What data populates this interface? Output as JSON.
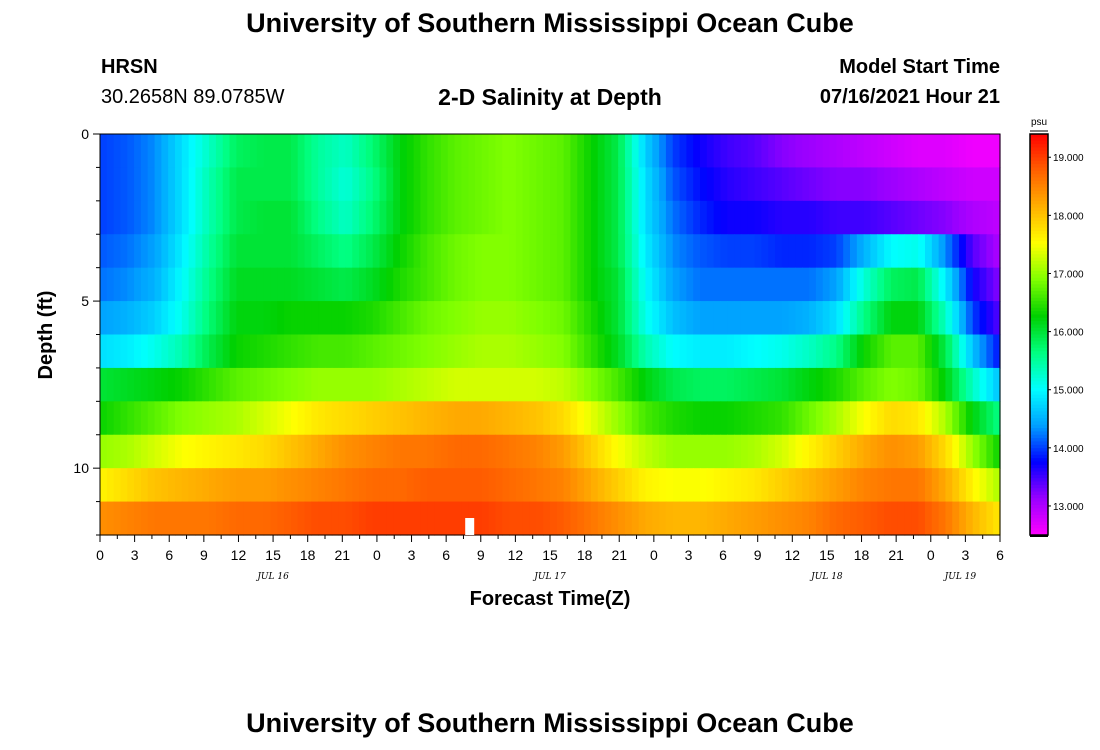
{
  "header": {
    "title": "University of Southern Mississippi Ocean Cube",
    "station": "HRSN",
    "coordinates": "30.2658N  89.0785W",
    "chart_title": "2-D Salinity at Depth",
    "model_start_label": "Model Start Time",
    "model_start_value": "07/16/2021 Hour 21"
  },
  "footer": {
    "title": "University of Southern Mississippi Ocean Cube"
  },
  "chart_data": {
    "type": "heatmap",
    "title": "2-D Salinity at Depth",
    "xlabel": "Forecast Time(Z)",
    "ylabel": "Depth (ft)",
    "x_ticks": [
      "0",
      "3",
      "6",
      "9",
      "12",
      "15",
      "18",
      "21",
      "0",
      "3",
      "6",
      "9",
      "12",
      "15",
      "18",
      "21",
      "0",
      "3",
      "6",
      "9",
      "12",
      "15",
      "18",
      "21",
      "0",
      "3",
      "6"
    ],
    "x_dates": [
      "JUL 16",
      "JUL 17",
      "JUL 18",
      "JUL 19"
    ],
    "x_hours_range": [
      0,
      78
    ],
    "y_ticks": [
      "0",
      "5",
      "10"
    ],
    "y_range_ft": [
      0,
      12
    ],
    "depth_levels": 12,
    "colorbar": {
      "unit": "psu",
      "min": 12.5,
      "max": 19.4,
      "ticks": [
        "13.000",
        "14.000",
        "15.000",
        "16.000",
        "17.000",
        "18.000",
        "19.000"
      ],
      "colors": [
        "#ff00ff",
        "#9900ff",
        "#0000ff",
        "#00a0ff",
        "#00ffff",
        "#00ff80",
        "#00d000",
        "#80ff00",
        "#ffff00",
        "#ffb000",
        "#ff6000",
        "#ff0000"
      ]
    },
    "salinity_psu": [
      [
        14.0,
        14.1,
        14.3,
        14.8,
        15.3,
        15.8,
        15.9,
        15.9,
        15.5,
        15.3,
        15.7,
        16.2,
        16.5,
        16.7,
        16.8,
        16.9,
        16.8,
        16.7,
        16.3,
        15.9,
        14.7,
        14.0,
        13.7,
        13.5,
        13.4,
        13.2,
        13.1,
        13.0,
        12.9,
        12.8,
        12.7,
        12.7,
        12.6,
        12.6
      ],
      [
        14.0,
        14.1,
        14.3,
        14.8,
        15.4,
        15.9,
        15.9,
        15.9,
        15.5,
        15.2,
        15.6,
        16.2,
        16.5,
        16.7,
        16.8,
        16.9,
        16.8,
        16.7,
        16.3,
        15.9,
        14.8,
        14.1,
        13.8,
        13.6,
        13.5,
        13.4,
        13.3,
        13.2,
        13.2,
        13.1,
        13.0,
        12.9,
        12.8,
        12.8
      ],
      [
        14.0,
        14.1,
        14.3,
        14.8,
        15.4,
        15.9,
        16.0,
        16.0,
        15.6,
        15.3,
        15.7,
        16.2,
        16.5,
        16.7,
        16.8,
        16.9,
        16.8,
        16.7,
        16.3,
        15.9,
        14.8,
        14.2,
        13.9,
        13.7,
        13.7,
        13.6,
        13.6,
        13.5,
        13.5,
        13.4,
        13.3,
        13.2,
        13.0,
        12.9
      ],
      [
        14.1,
        14.2,
        14.4,
        14.9,
        15.5,
        16.0,
        16.0,
        16.0,
        15.8,
        15.6,
        15.9,
        16.3,
        16.6,
        16.8,
        16.9,
        16.9,
        16.8,
        16.7,
        16.3,
        15.9,
        14.9,
        14.3,
        14.1,
        14.0,
        14.0,
        13.9,
        13.9,
        14.0,
        14.5,
        15.0,
        15.1,
        14.3,
        13.4,
        13.0
      ],
      [
        14.2,
        14.3,
        14.5,
        15.0,
        15.6,
        16.1,
        16.1,
        16.1,
        16.0,
        15.9,
        16.1,
        16.4,
        16.6,
        16.8,
        16.9,
        16.9,
        16.8,
        16.7,
        16.3,
        16.0,
        15.0,
        14.4,
        14.2,
        14.2,
        14.2,
        14.2,
        14.2,
        14.4,
        15.2,
        15.8,
        15.9,
        14.9,
        13.7,
        13.2
      ],
      [
        14.4,
        14.5,
        14.7,
        15.1,
        15.7,
        16.2,
        16.2,
        16.3,
        16.3,
        16.3,
        16.4,
        16.6,
        16.8,
        16.9,
        17.0,
        17.0,
        16.9,
        16.8,
        16.4,
        16.0,
        15.1,
        14.6,
        14.4,
        14.4,
        14.4,
        14.4,
        14.5,
        14.8,
        15.6,
        16.2,
        16.2,
        15.3,
        14.0,
        13.4
      ],
      [
        14.8,
        14.9,
        15.1,
        15.4,
        15.9,
        16.3,
        16.4,
        16.5,
        16.6,
        16.6,
        16.7,
        16.8,
        16.9,
        17.0,
        17.1,
        17.1,
        17.0,
        16.9,
        16.5,
        16.1,
        15.4,
        15.0,
        14.9,
        14.9,
        15.0,
        15.1,
        15.3,
        15.6,
        16.3,
        16.7,
        16.7,
        15.9,
        14.6,
        13.8
      ],
      [
        16.0,
        16.1,
        16.2,
        16.3,
        16.5,
        16.7,
        16.8,
        16.9,
        17.0,
        17.0,
        17.0,
        17.1,
        17.2,
        17.3,
        17.3,
        17.3,
        17.3,
        17.2,
        16.9,
        16.6,
        16.2,
        15.9,
        15.8,
        15.8,
        15.9,
        16.0,
        16.2,
        16.4,
        16.7,
        16.9,
        16.8,
        16.2,
        15.3,
        14.6
      ],
      [
        16.3,
        16.5,
        16.7,
        16.9,
        17.0,
        17.1,
        17.3,
        17.5,
        17.7,
        17.8,
        17.9,
        18.0,
        18.1,
        18.2,
        18.2,
        18.1,
        18.0,
        17.8,
        17.4,
        17.0,
        16.6,
        16.4,
        16.3,
        16.3,
        16.4,
        16.5,
        16.8,
        17.1,
        17.5,
        17.8,
        17.7,
        17.1,
        16.2,
        15.6
      ],
      [
        17.0,
        17.1,
        17.3,
        17.5,
        17.6,
        17.7,
        17.8,
        18.0,
        18.2,
        18.4,
        18.5,
        18.6,
        18.6,
        18.7,
        18.7,
        18.6,
        18.5,
        18.3,
        17.9,
        17.5,
        17.2,
        17.0,
        17.0,
        17.0,
        17.1,
        17.3,
        17.6,
        17.9,
        18.2,
        18.4,
        18.3,
        17.8,
        17.0,
        16.3
      ],
      [
        17.6,
        17.8,
        18.0,
        18.1,
        18.2,
        18.3,
        18.3,
        18.4,
        18.5,
        18.6,
        18.7,
        18.7,
        18.8,
        18.8,
        18.8,
        18.7,
        18.6,
        18.5,
        18.2,
        17.9,
        17.6,
        17.5,
        17.5,
        17.6,
        17.7,
        17.9,
        18.1,
        18.3,
        18.5,
        18.6,
        18.6,
        18.2,
        17.6,
        17.1
      ],
      [
        18.4,
        18.5,
        18.6,
        18.6,
        18.6,
        18.7,
        18.7,
        18.8,
        18.9,
        18.9,
        19.0,
        19.0,
        19.0,
        19.0,
        19.0,
        18.9,
        18.9,
        18.8,
        18.6,
        18.4,
        18.2,
        18.1,
        18.1,
        18.2,
        18.3,
        18.4,
        18.5,
        18.7,
        18.8,
        18.9,
        18.9,
        18.6,
        18.1,
        17.7
      ]
    ]
  }
}
